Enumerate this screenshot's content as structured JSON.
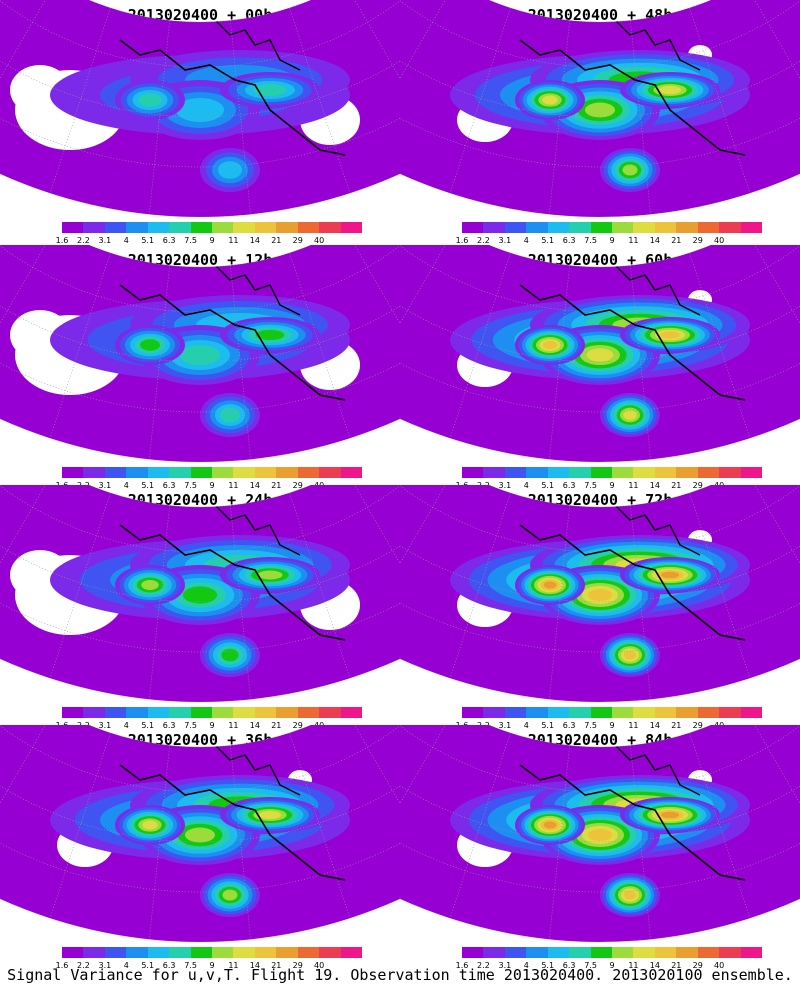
{
  "panels": [
    {
      "title": "2013020400 + 00h"
    },
    {
      "title": "2013020400 + 48h"
    },
    {
      "title": "2013020400 + 12h"
    },
    {
      "title": "2013020400 + 60h"
    },
    {
      "title": "2013020400 + 24h"
    },
    {
      "title": "2013020400 + 72h"
    },
    {
      "title": "2013020400 + 36h"
    },
    {
      "title": "2013020400 + 84h"
    }
  ],
  "colorbar": {
    "labels": [
      "1.6",
      "2.2",
      "3.1",
      "4",
      "5.1",
      "6.3",
      "7.5",
      "9",
      "11",
      "14",
      "21",
      "29",
      "40"
    ],
    "colors": [
      "#9600d2",
      "#7d29ea",
      "#3f54f0",
      "#1d8ff0",
      "#1dbcf0",
      "#25cfad",
      "#12c812",
      "#9bdc3c",
      "#dddd42",
      "#ecc33b",
      "#e89f30",
      "#ec6a31",
      "#ec3c52",
      "#ee1787"
    ]
  },
  "footer": "Signal Variance for u,v,T. Flight 19. Observation time 2013020400. 2013020100 ensemble."
}
